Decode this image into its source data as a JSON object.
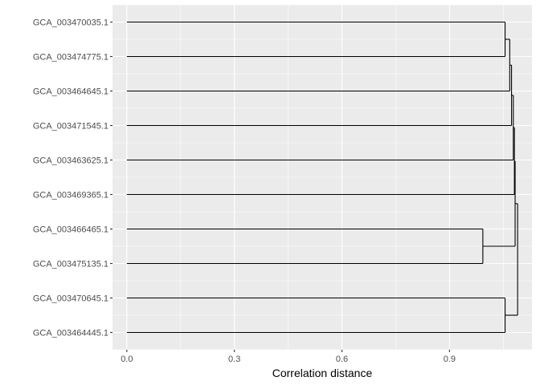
{
  "chart_data": {
    "type": "dendrogram",
    "xlabel": "Correlation distance",
    "ylabel": "",
    "title": "",
    "xlim": [
      -0.04,
      1.13
    ],
    "x_ticks": [
      0.0,
      0.3,
      0.6,
      0.9
    ],
    "x_tick_labels": [
      "0.0",
      "0.3",
      "0.6",
      "0.9"
    ],
    "grid": true,
    "colors": {
      "panel_bg": "#ebebeb",
      "grid": "#ffffff",
      "branch": "#000000",
      "tick_text": "#4d4d4d",
      "axis_title": "#000000"
    },
    "leaves": [
      "GCA_003470035.1",
      "GCA_003474775.1",
      "GCA_003464645.1",
      "GCA_003471545.1",
      "GCA_003463625.1",
      "GCA_003469365.1",
      "GCA_003466465.1",
      "GCA_003475135.1",
      "GCA_003470645.1",
      "GCA_003464445.1"
    ],
    "merges": [
      {
        "children": [
          "L0",
          "L1"
        ],
        "height": 1.055
      },
      {
        "children": [
          "M0",
          "L2"
        ],
        "height": 1.068
      },
      {
        "children": [
          "M1",
          "L3"
        ],
        "height": 1.073
      },
      {
        "children": [
          "M2",
          "L4"
        ],
        "height": 1.078
      },
      {
        "children": [
          "M3",
          "L5"
        ],
        "height": 1.081
      },
      {
        "children": [
          "L6",
          "L7"
        ],
        "height": 0.993
      },
      {
        "children": [
          "M4",
          "M5"
        ],
        "height": 1.083
      },
      {
        "children": [
          "L8",
          "L9"
        ],
        "height": 1.055
      },
      {
        "children": [
          "M6",
          "M7"
        ],
        "height": 1.09
      }
    ]
  }
}
